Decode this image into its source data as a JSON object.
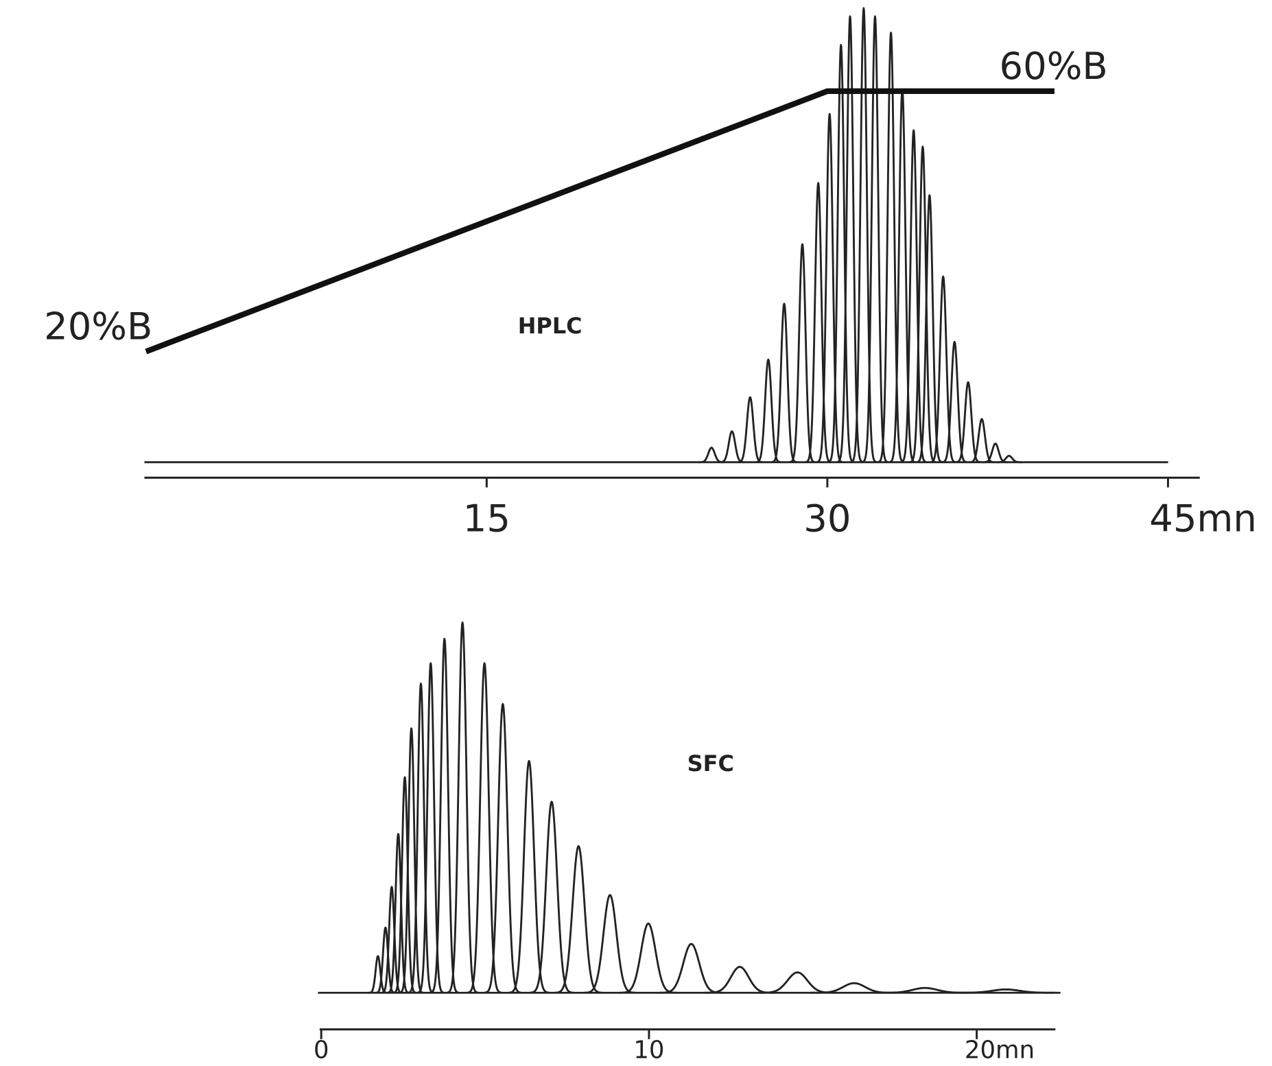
{
  "chart_data": [
    {
      "type": "chromatogram",
      "title": "HPLC",
      "x": [
        24.9,
        25.8,
        26.6,
        27.4,
        28.1,
        28.9,
        29.6,
        30.1,
        30.6,
        31.0,
        31.6,
        32.1,
        32.8,
        33.3,
        33.8,
        34.2,
        34.5,
        35.1,
        35.6,
        36.2,
        36.8,
        37.4,
        38.0
      ],
      "values": [
        3.2,
        6.8,
        14.3,
        22.6,
        34.9,
        48.0,
        61.5,
        76.7,
        91.9,
        98.2,
        100,
        98.2,
        94.6,
        82.1,
        73.1,
        69.5,
        58.8,
        40.9,
        26.5,
        17.6,
        9.5,
        4.1,
        1.4
      ],
      "color": "#222222",
      "xlim": [
        0,
        46.4
      ],
      "xticks": [
        15,
        30,
        {
          "value": 45,
          "label": "45mn"
        }
      ],
      "ylim": [
        0,
        100
      ],
      "gradient": {
        "x": [
          0,
          30,
          40
        ],
        "values": [
          20,
          60,
          60
        ],
        "value_labels": [
          "20%B",
          "60%B",
          null
        ],
        "axis": "y2"
      },
      "y2lim": [
        0,
        74
      ]
    },
    {
      "type": "chromatogram",
      "title": "SFC",
      "x": [
        1.73,
        1.96,
        2.15,
        2.35,
        2.55,
        2.75,
        3.04,
        3.34,
        3.76,
        4.31,
        4.98,
        5.54,
        6.34,
        7.03,
        7.85,
        8.81,
        9.98,
        11.29,
        12.77,
        14.53,
        16.26,
        18.42,
        20.89
      ],
      "values": [
        9.9,
        17.6,
        28.6,
        42.9,
        58.2,
        71.4,
        83.5,
        89.0,
        95.6,
        100,
        89.0,
        78.0,
        62.6,
        51.6,
        39.6,
        26.4,
        18.7,
        13.2,
        7.0,
        5.5,
        2.6,
        1.3,
        0.9
      ],
      "color": "#222222",
      "xlim": [
        0,
        22.4
      ],
      "xticks": [
        0,
        10,
        {
          "value": 20,
          "label": "20mn"
        }
      ],
      "ylim": [
        0,
        100
      ]
    }
  ]
}
